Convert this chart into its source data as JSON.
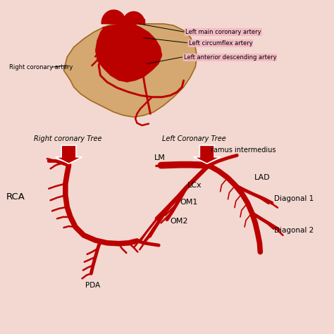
{
  "bg_color": "#f2d8d0",
  "artery_color": "#bb0000",
  "artery_lw_main": 5.5,
  "artery_lw_med": 3.5,
  "artery_lw_thin": 1.8,
  "text_color": "#000000",
  "label_bg": "#f5b8c4",
  "heart_fill": "#d4a870",
  "heart_stroke": "#a06820",
  "labels": {
    "left_main": "Left main coronary artery",
    "left_circ": "Left circumflex artery",
    "left_ant": "Left anterior descending artery",
    "right_cor": "Right coronary artery",
    "right_tree": "Right coronary Tree",
    "left_tree": "Left Coronary Tree",
    "rca": "RCA",
    "pda": "PDA",
    "lm": "LM",
    "ramus": "ramus intermedius",
    "lad": "LAD",
    "lcx": "LCx",
    "om1": "OM1",
    "om2": "OM2",
    "diag1": "Diagonal 1",
    "diag2": "Diagonal 2"
  }
}
